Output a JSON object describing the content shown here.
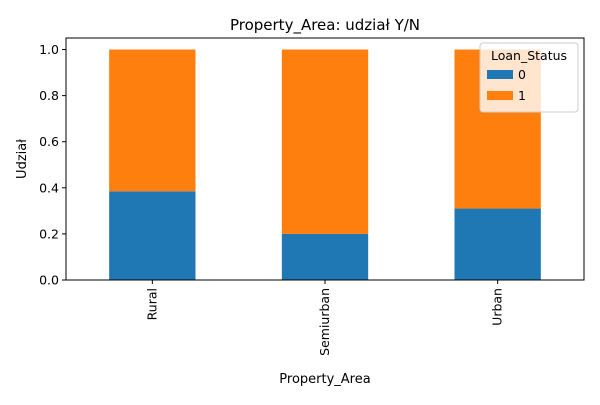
{
  "chart_data": {
    "type": "bar",
    "stacked": true,
    "title": "Property_Area: udział Y/N",
    "xlabel": "Property_Area",
    "ylabel": "Udział",
    "categories": [
      "Rural",
      "Semiurban",
      "Urban"
    ],
    "series": [
      {
        "name": "0",
        "values": [
          0.385,
          0.2,
          0.31
        ]
      },
      {
        "name": "1",
        "values": [
          0.615,
          0.8,
          0.69
        ]
      }
    ],
    "ylim": [
      0,
      1.05
    ],
    "yticks": [
      0.0,
      0.2,
      0.4,
      0.6,
      0.8,
      1.0
    ],
    "ytick_labels": [
      "0.0",
      "0.2",
      "0.4",
      "0.6",
      "0.8",
      "1.0"
    ],
    "legend": {
      "title": "Loan_Status",
      "placement": "top-right"
    },
    "grid": false,
    "colors": {
      "0": "#1f77b4",
      "1": "#ff7f0e"
    }
  }
}
